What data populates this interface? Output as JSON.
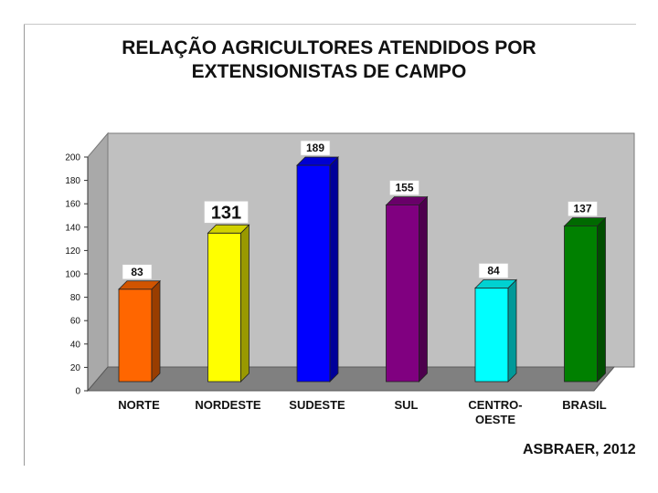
{
  "title_line1": "RELAÇÃO AGRICULTORES ATENDIDOS POR",
  "title_line2": "EXTENSIONISTAS DE CAMPO",
  "credit": "ASBRAER, 2012",
  "chart_data": {
    "type": "bar",
    "title": "RELAÇÃO AGRICULTORES ATENDIDOS POR EXTENSIONISTAS DE CAMPO",
    "categories": [
      "NORTE",
      "NORDESTE",
      "SUDESTE",
      "SUL",
      "CENTRO-OESTE",
      "BRASIL"
    ],
    "category_lines": [
      [
        "NORTE"
      ],
      [
        "NORDESTE"
      ],
      [
        "SUDESTE"
      ],
      [
        "SUL"
      ],
      [
        "CENTRO-",
        "OESTE"
      ],
      [
        "BRASIL"
      ]
    ],
    "values": [
      83,
      131,
      189,
      155,
      84,
      137
    ],
    "value_labels": [
      "83",
      "131",
      "189",
      "155",
      "84",
      "137"
    ],
    "yticks": [
      0,
      20,
      40,
      60,
      80,
      100,
      120,
      140,
      160,
      180,
      200
    ],
    "ylim": [
      0,
      200
    ],
    "style": "3d-bar",
    "colors": {
      "NORTE": "#ff6600",
      "NORDESTE": "#ffff00",
      "SUDESTE": "#0000ff",
      "SUL": "#800080",
      "CENTRO-OESTE": "#00ffff",
      "BRASIL": "#008000"
    },
    "wall_color": "#c0c0c0",
    "floor_color": "#808080"
  }
}
